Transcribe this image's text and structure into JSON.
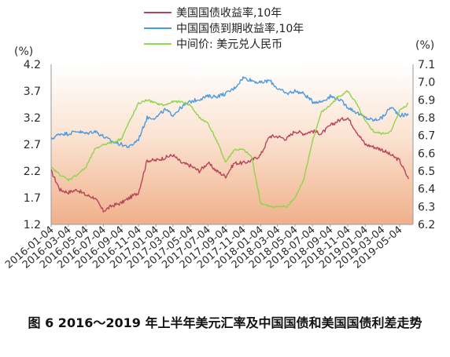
{
  "chart_data": {
    "type": "line",
    "title": "",
    "caption": "图 6 2016～2019 年上半年美元汇率及中国国债和美国国债利差走势",
    "left_axis": {
      "unit_label": "(%)",
      "ylim": [
        1.2,
        4.2
      ],
      "ticks": [
        "4.2",
        "3.7",
        "3.2",
        "2.7",
        "2.2",
        "1.7",
        "1.2"
      ]
    },
    "right_axis": {
      "unit_label": "(%)",
      "ylim": [
        6.2,
        7.1
      ],
      "ticks": [
        "7.1",
        "7.0",
        "6.9",
        "6.8",
        "6.7",
        "6.6",
        "6.5",
        "6.4",
        "6.3",
        "6.2"
      ]
    },
    "x_labels": [
      "2016-01-04",
      "2016-03-04",
      "2016-05-04",
      "2016-07-04",
      "2016-09-04",
      "2016-11-04",
      "2017-01-04",
      "2017-03-04",
      "2017-05-04",
      "2017-07-04",
      "2017-09-04",
      "2017-11-04",
      "2018-01-04",
      "2018-03-04",
      "2018-05-04",
      "2018-07-04",
      "2018-09-04",
      "2018-11-04",
      "2019-01-04",
      "2019-03-04",
      "2019-05-04"
    ],
    "background_gradient": [
      "#ffffff",
      "#fbe3d2",
      "#f0b08a"
    ],
    "legend_position": "top-center",
    "series": [
      {
        "name": "美国国债收益率,10年",
        "axis": "left",
        "color": "#b8455a",
        "x": [
          "2016-01-04",
          "2016-02-04",
          "2016-03-04",
          "2016-04-04",
          "2016-05-04",
          "2016-06-04",
          "2016-07-04",
          "2016-08-04",
          "2016-09-04",
          "2016-10-04",
          "2016-11-04",
          "2016-12-04",
          "2017-01-04",
          "2017-02-04",
          "2017-03-04",
          "2017-04-04",
          "2017-05-04",
          "2017-06-04",
          "2017-07-04",
          "2017-08-04",
          "2017-09-04",
          "2017-10-04",
          "2017-11-04",
          "2017-12-04",
          "2018-01-04",
          "2018-02-04",
          "2018-03-04",
          "2018-04-04",
          "2018-05-04",
          "2018-06-04",
          "2018-07-04",
          "2018-08-04",
          "2018-09-04",
          "2018-10-04",
          "2018-11-04",
          "2018-12-04",
          "2019-01-04",
          "2019-02-04",
          "2019-03-04",
          "2019-04-04",
          "2019-05-04",
          "2019-06-04"
        ],
        "values": [
          2.2,
          1.85,
          1.8,
          1.85,
          1.75,
          1.7,
          1.45,
          1.55,
          1.6,
          1.7,
          1.8,
          2.4,
          2.4,
          2.45,
          2.5,
          2.35,
          2.3,
          2.2,
          2.35,
          2.2,
          2.1,
          2.35,
          2.35,
          2.4,
          2.5,
          2.85,
          2.85,
          2.8,
          2.95,
          2.9,
          2.95,
          2.9,
          3.05,
          3.15,
          3.2,
          2.95,
          2.7,
          2.65,
          2.6,
          2.5,
          2.4,
          2.05
        ]
      },
      {
        "name": "中国国债到期收益率,10年",
        "axis": "left",
        "color": "#4a9be0",
        "x": [
          "2016-01-04",
          "2016-02-04",
          "2016-03-04",
          "2016-04-04",
          "2016-05-04",
          "2016-06-04",
          "2016-07-04",
          "2016-08-04",
          "2016-09-04",
          "2016-10-04",
          "2016-11-04",
          "2016-12-04",
          "2017-01-04",
          "2017-02-04",
          "2017-03-04",
          "2017-04-04",
          "2017-05-04",
          "2017-06-04",
          "2017-07-04",
          "2017-08-04",
          "2017-09-04",
          "2017-10-04",
          "2017-11-04",
          "2017-12-04",
          "2018-01-04",
          "2018-02-04",
          "2018-03-04",
          "2018-04-04",
          "2018-05-04",
          "2018-06-04",
          "2018-07-04",
          "2018-08-04",
          "2018-09-04",
          "2018-10-04",
          "2018-11-04",
          "2018-12-04",
          "2019-01-04",
          "2019-02-04",
          "2019-03-04",
          "2019-04-04",
          "2019-05-04",
          "2019-06-04"
        ],
        "values": [
          2.8,
          2.9,
          2.9,
          2.95,
          2.9,
          2.95,
          2.85,
          2.75,
          2.7,
          2.65,
          2.8,
          3.2,
          3.2,
          3.35,
          3.25,
          3.4,
          3.5,
          3.55,
          3.6,
          3.6,
          3.65,
          3.75,
          3.95,
          3.9,
          3.85,
          3.9,
          3.75,
          3.65,
          3.7,
          3.65,
          3.5,
          3.5,
          3.6,
          3.55,
          3.4,
          3.3,
          3.2,
          3.15,
          3.2,
          3.4,
          3.25,
          3.25
        ]
      },
      {
        "name": "中间价: 美元兑人民币",
        "axis": "right",
        "color": "#8fd44a",
        "x": [
          "2016-01-04",
          "2016-02-04",
          "2016-03-04",
          "2016-04-04",
          "2016-05-04",
          "2016-06-04",
          "2016-07-04",
          "2016-08-04",
          "2016-09-04",
          "2016-10-04",
          "2016-11-04",
          "2016-12-04",
          "2017-01-04",
          "2017-02-04",
          "2017-03-04",
          "2017-04-04",
          "2017-05-04",
          "2017-06-04",
          "2017-07-04",
          "2017-08-04",
          "2017-09-04",
          "2017-10-04",
          "2017-11-04",
          "2017-12-04",
          "2018-01-04",
          "2018-02-04",
          "2018-03-04",
          "2018-04-04",
          "2018-05-04",
          "2018-06-04",
          "2018-07-04",
          "2018-08-04",
          "2018-09-04",
          "2018-10-04",
          "2018-11-04",
          "2018-12-04",
          "2019-01-04",
          "2019-02-04",
          "2019-03-04",
          "2019-04-04",
          "2019-05-04",
          "2019-06-04"
        ],
        "values": [
          6.52,
          6.48,
          6.45,
          6.48,
          6.52,
          6.62,
          6.65,
          6.66,
          6.68,
          6.78,
          6.88,
          6.9,
          6.88,
          6.87,
          6.89,
          6.89,
          6.87,
          6.8,
          6.77,
          6.67,
          6.55,
          6.62,
          6.62,
          6.58,
          6.32,
          6.3,
          6.3,
          6.3,
          6.35,
          6.45,
          6.67,
          6.83,
          6.87,
          6.92,
          6.95,
          6.88,
          6.78,
          6.72,
          6.71,
          6.72,
          6.84,
          6.88
        ]
      }
    ]
  }
}
